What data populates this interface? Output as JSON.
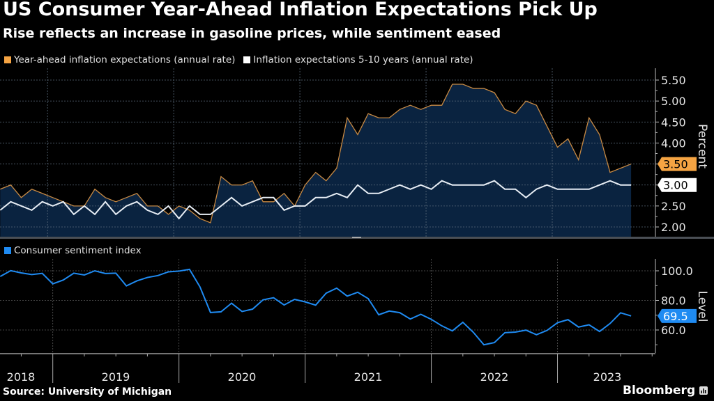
{
  "header": {
    "title": "US Consumer Year-Ahead Inflation Expectations Pick Up",
    "subtitle": "Rise reflects an increase in gasoline prices, while sentiment eased"
  },
  "footer": {
    "source": "Source: University of Michigan",
    "brand": "Bloomberg"
  },
  "colors": {
    "orange": "#f5a443",
    "white": "#ffffff",
    "blue": "#1f8bf2",
    "area_fill": "#0a2340",
    "background": "#000000"
  },
  "chart_data": [
    {
      "type": "area",
      "panel": "top",
      "ylabel": "Percent",
      "ylim": [
        1.8,
        5.65
      ],
      "yticks": [
        "5.50",
        "5.00",
        "4.50",
        "4.00",
        "3.50",
        "3.00",
        "2.50",
        "2.00"
      ],
      "ytick_values": [
        5.5,
        5.0,
        4.5,
        4.0,
        3.5,
        3.0,
        2.5,
        2.0
      ],
      "grid": true,
      "legend_position": "top-left",
      "series": [
        {
          "name": "Year-ahead inflation expectations (annual rate)",
          "color": "#f5a443",
          "style": "area-line",
          "last_value_label": "3.50",
          "values": [
            2.9,
            3.0,
            2.7,
            2.9,
            2.8,
            2.7,
            2.6,
            2.5,
            2.5,
            2.9,
            2.7,
            2.6,
            2.7,
            2.8,
            2.5,
            2.5,
            2.3,
            2.5,
            2.4,
            2.2,
            2.1,
            3.2,
            3.0,
            3.0,
            3.1,
            2.6,
            2.6,
            2.8,
            2.5,
            3.0,
            3.3,
            3.1,
            3.4,
            4.6,
            4.2,
            4.7,
            4.6,
            4.6,
            4.8,
            4.9,
            4.8,
            4.9,
            4.9,
            5.4,
            5.4,
            5.3,
            5.3,
            5.2,
            4.8,
            4.7,
            5.0,
            4.9,
            4.4,
            3.9,
            4.1,
            3.6,
            4.6,
            4.2,
            3.3,
            3.4,
            3.5
          ]
        },
        {
          "name": "Inflation expectations 5-10 years (annual rate)",
          "color": "#ffffff",
          "style": "line",
          "last_value_label": "3.00",
          "values": [
            2.4,
            2.6,
            2.5,
            2.4,
            2.6,
            2.5,
            2.6,
            2.3,
            2.5,
            2.3,
            2.6,
            2.3,
            2.5,
            2.6,
            2.4,
            2.3,
            2.5,
            2.2,
            2.5,
            2.3,
            2.3,
            2.5,
            2.7,
            2.5,
            2.6,
            2.7,
            2.7,
            2.4,
            2.5,
            2.5,
            2.7,
            2.7,
            2.8,
            2.7,
            3.0,
            2.8,
            2.8,
            2.9,
            3.0,
            2.9,
            3.0,
            2.9,
            3.1,
            3.0,
            3.0,
            3.0,
            3.0,
            3.1,
            2.9,
            2.9,
            2.7,
            2.9,
            3.0,
            2.9,
            2.9,
            2.9,
            2.9,
            3.0,
            3.1,
            3.0,
            3.0
          ]
        }
      ]
    },
    {
      "type": "line",
      "panel": "bottom",
      "ylabel": "Level",
      "ylim": [
        40,
        106
      ],
      "yticks": [
        "100.0",
        "80.0",
        "60.0"
      ],
      "ytick_values": [
        100,
        80,
        60
      ],
      "grid": true,
      "legend_position": "top-left",
      "series": [
        {
          "name": "Consumer sentiment index",
          "color": "#1f8bf2",
          "style": "line",
          "last_value_label": "69.5",
          "values": [
            96.2,
            100.1,
            98.6,
            97.5,
            98.3,
            91.2,
            93.8,
            98.4,
            97.2,
            100.0,
            98.2,
            98.4,
            89.8,
            93.2,
            95.5,
            96.8,
            99.3,
            99.8,
            101.0,
            89.1,
            71.8,
            72.3,
            78.1,
            72.5,
            74.1,
            80.4,
            81.8,
            76.9,
            80.7,
            79.0,
            76.8,
            84.9,
            88.3,
            82.9,
            85.5,
            81.2,
            70.3,
            72.8,
            71.7,
            67.4,
            70.6,
            67.2,
            62.8,
            59.4,
            65.2,
            58.4,
            50.0,
            51.5,
            58.2,
            58.6,
            59.9,
            56.8,
            59.7,
            64.9,
            67.0,
            62.0,
            63.5,
            59.0,
            64.4,
            71.6,
            69.5
          ]
        }
      ]
    }
  ],
  "x_axis": {
    "start": "2018-08",
    "end": "2023-08",
    "frequency": "monthly",
    "year_labels": [
      "2018",
      "2019",
      "2020",
      "2021",
      "2022",
      "2023"
    ]
  }
}
